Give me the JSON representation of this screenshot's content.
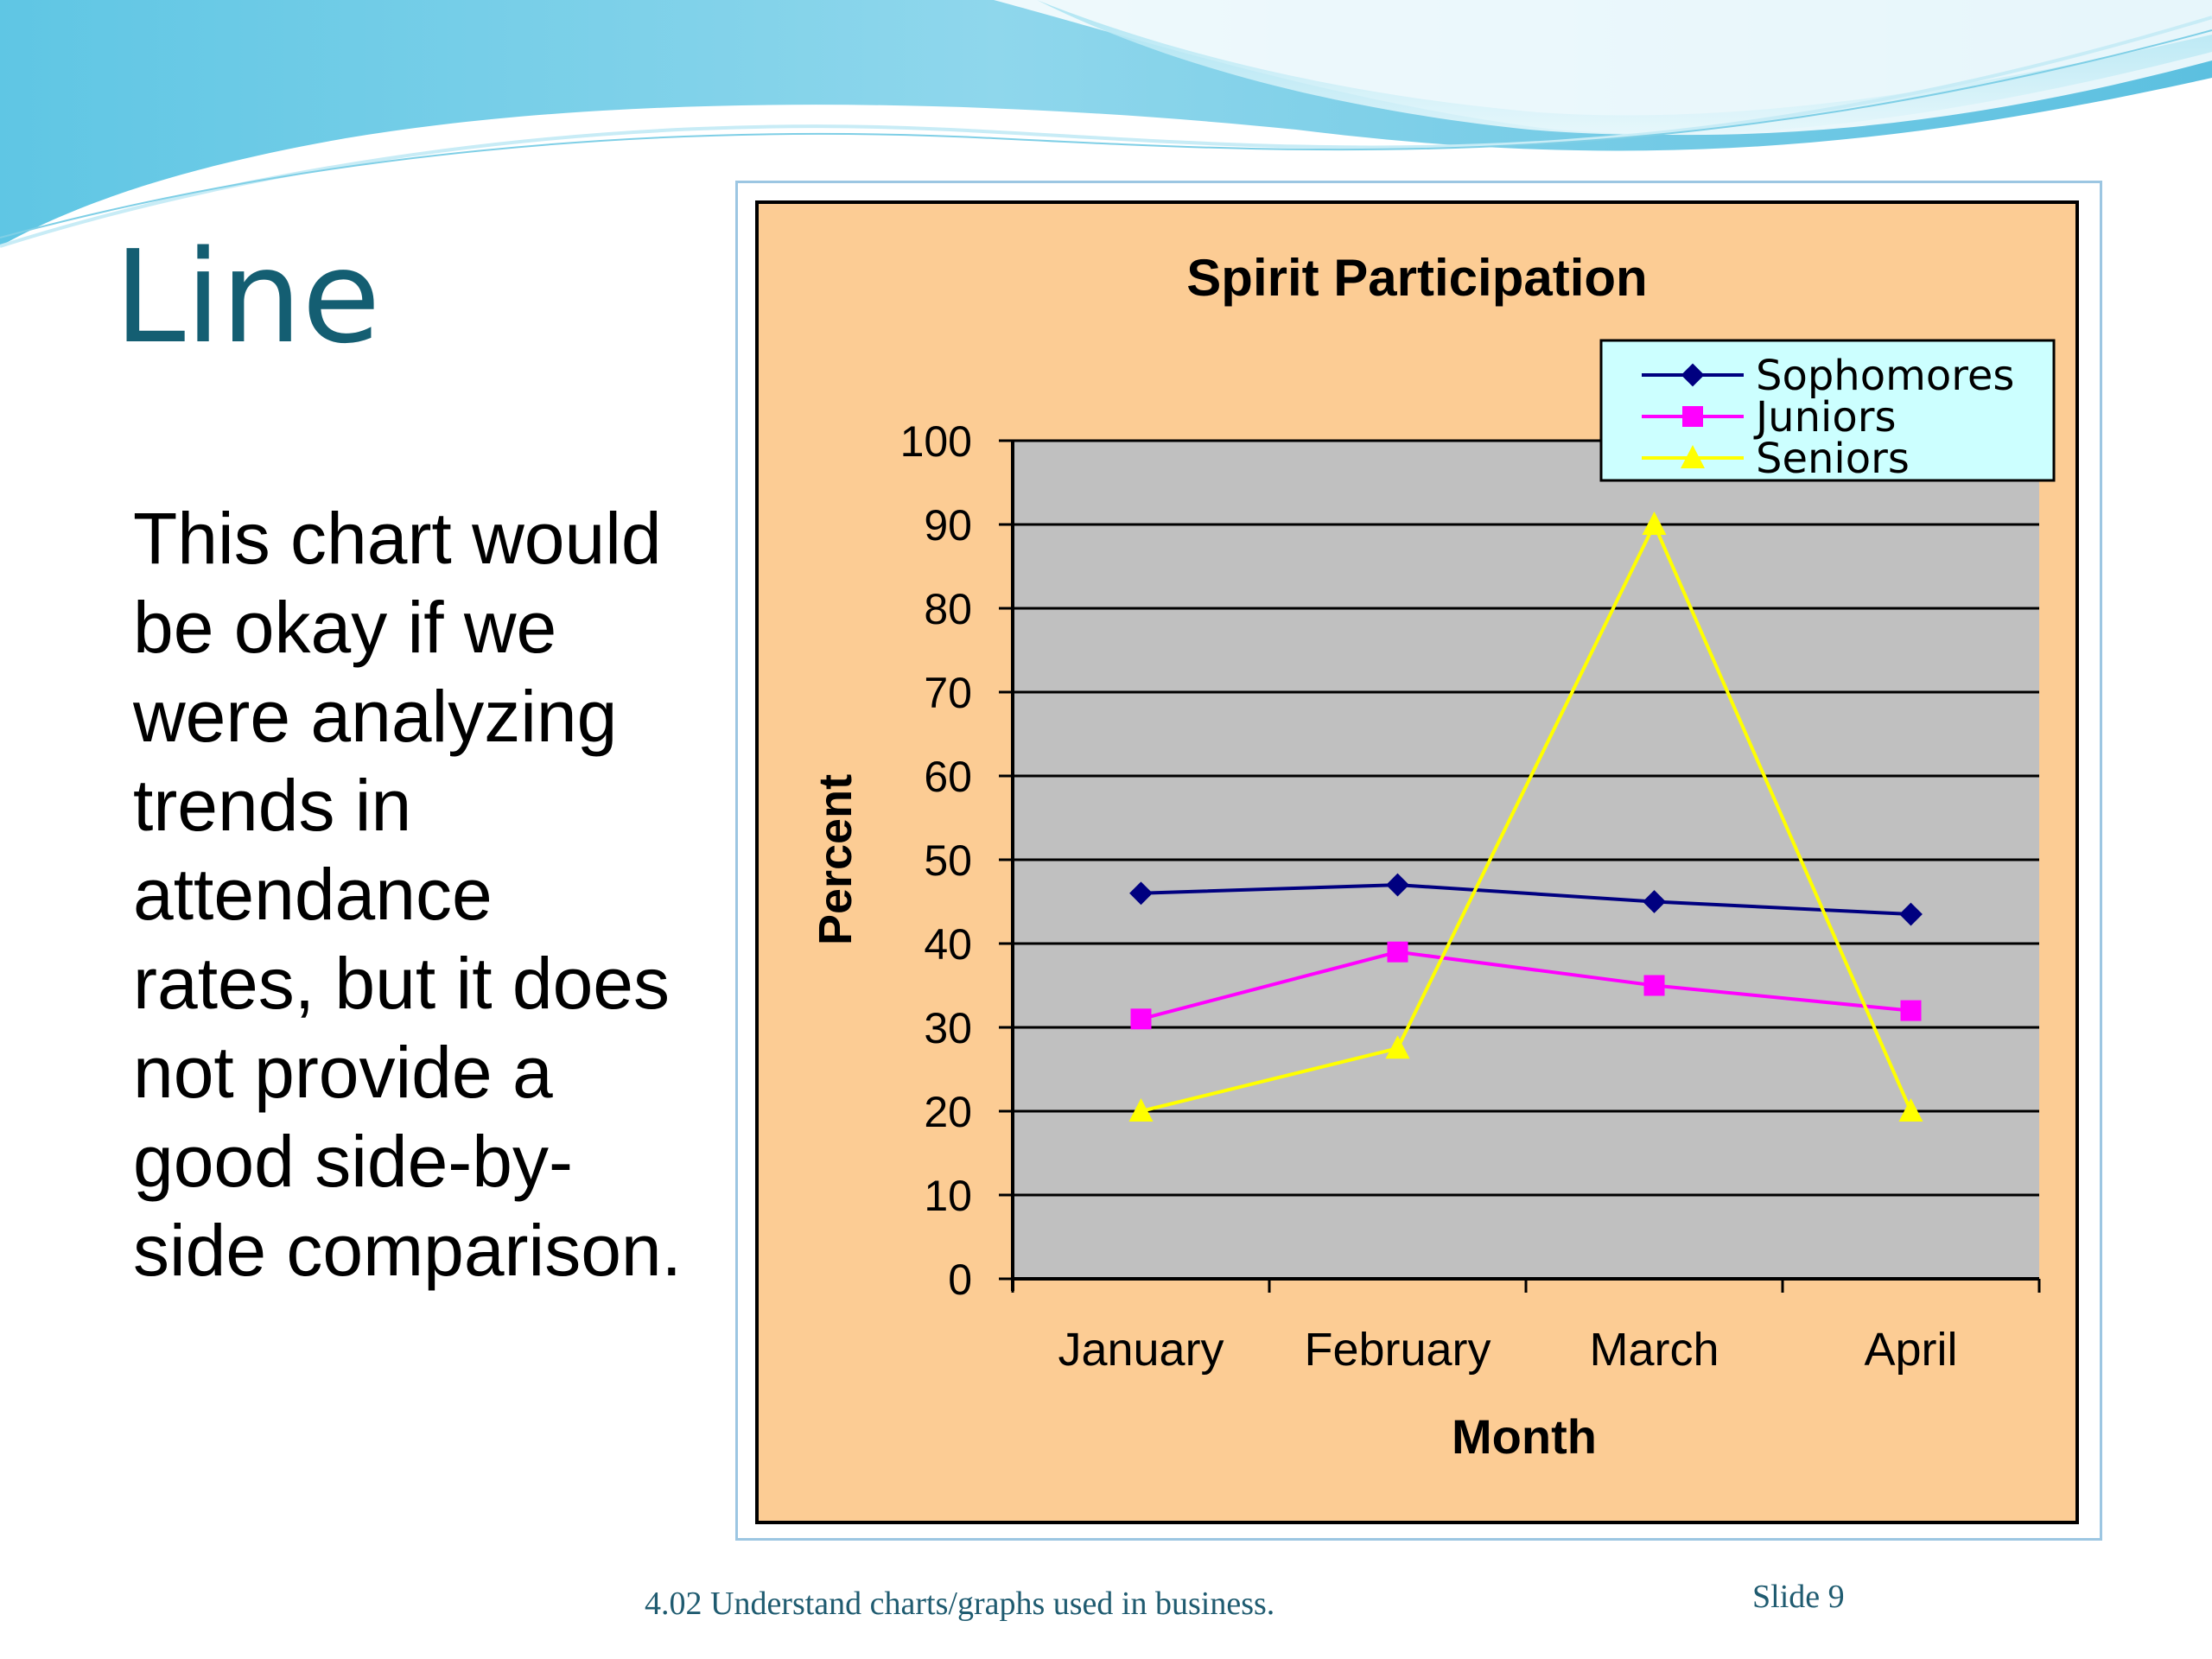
{
  "slide": {
    "title": "Line",
    "body": "This chart would be okay if we were analyzing trends in attendance rates, but it does not provide a good side-by-side comparison.",
    "footer_left": "4.02 Understand charts/graphs used in business.",
    "footer_right": "Slide 9"
  },
  "colors": {
    "title": "#145e72",
    "chart_background": "#fccc94",
    "plot_background": "#c0c0c0",
    "legend_background": "#ccffff"
  },
  "chart_data": {
    "type": "line",
    "title": "Spirit Participation",
    "xlabel": "Month",
    "ylabel": "Percent",
    "categories": [
      "January",
      "February",
      "March",
      "April"
    ],
    "ylim": [
      0,
      100
    ],
    "yticks": [
      0,
      10,
      20,
      30,
      40,
      50,
      60,
      70,
      80,
      90,
      100
    ],
    "grid": true,
    "legend_position": "top-right",
    "series": [
      {
        "name": "Sophomores",
        "color": "#000080",
        "marker": "diamond",
        "values": [
          46,
          47,
          45,
          43.5
        ]
      },
      {
        "name": "Juniors",
        "color": "#ff00ff",
        "marker": "square",
        "values": [
          31,
          39,
          35,
          32
        ]
      },
      {
        "name": "Seniors",
        "color": "#ffff00",
        "marker": "triangle",
        "values": [
          20,
          27.5,
          90,
          20
        ]
      }
    ]
  }
}
